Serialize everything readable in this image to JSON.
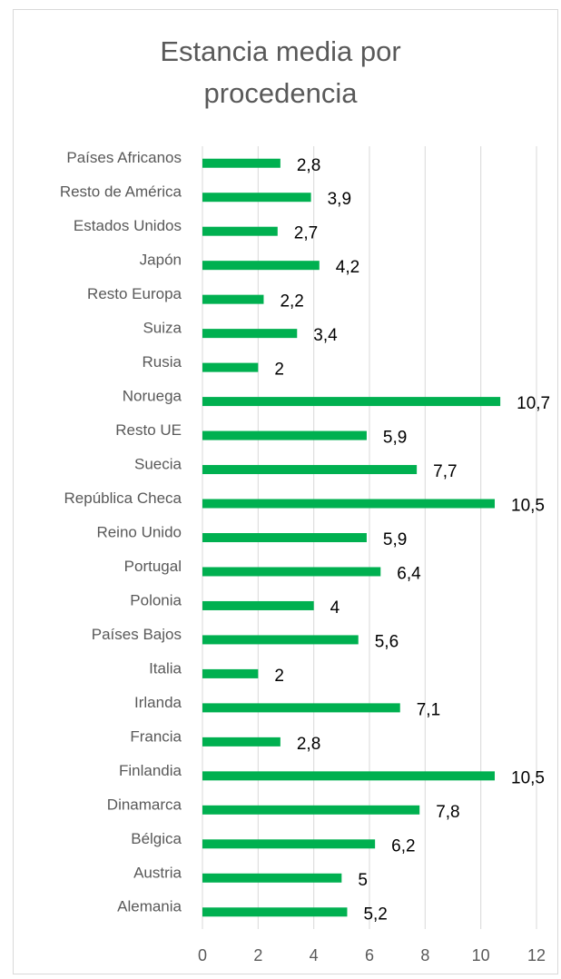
{
  "chart_data": {
    "type": "bar",
    "orientation": "horizontal",
    "title": "Estancia media por procedencia",
    "categories": [
      "Países Africanos",
      "Resto de América",
      "Estados Unidos",
      "Japón",
      "Resto Europa",
      "Suiza",
      "Rusia",
      "Noruega",
      "Resto UE",
      "Suecia",
      "República Checa",
      "Reino Unido",
      "Portugal",
      "Polonia",
      "Países Bajos",
      "Italia",
      "Irlanda",
      "Francia",
      "Finlandia",
      "Dinamarca",
      "Bélgica",
      "Austria",
      "Alemania"
    ],
    "values": [
      2.8,
      3.9,
      2.7,
      4.2,
      2.2,
      3.4,
      2,
      10.7,
      5.9,
      7.7,
      10.5,
      5.9,
      6.4,
      4,
      5.6,
      2,
      7.1,
      2.8,
      10.5,
      7.8,
      6.2,
      5,
      5.2
    ],
    "value_labels": [
      "2,8",
      "3,9",
      "2,7",
      "4,2",
      "2,2",
      "3,4",
      "2",
      "10,7",
      "5,9",
      "7,7",
      "10,5",
      "5,9",
      "6,4",
      "4",
      "5,6",
      "2",
      "7,1",
      "2,8",
      "10,5",
      "7,8",
      "6,2",
      "5",
      "5,2"
    ],
    "color": "#00b050",
    "xlim": [
      0,
      12
    ],
    "xticks": [
      0,
      2,
      4,
      6,
      8,
      10,
      12
    ],
    "grid": true
  }
}
